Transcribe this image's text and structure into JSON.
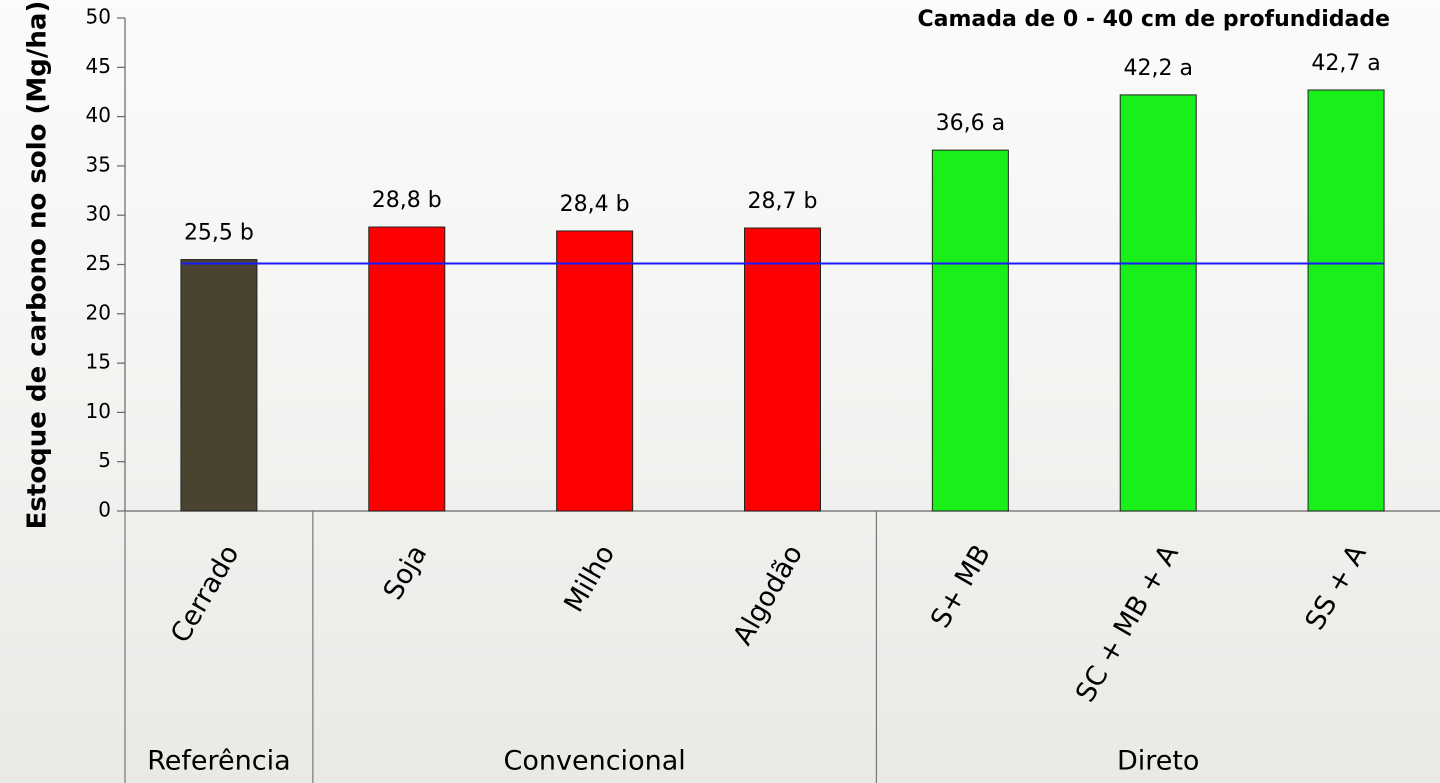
{
  "chart_data": {
    "type": "bar",
    "title": "Camada de 0 - 40 cm de profundidade",
    "y_label": "Estoque de carbono no solo (Mg/ha)",
    "ylim": [
      0,
      50
    ],
    "yticks": [
      0,
      5,
      10,
      15,
      20,
      25,
      30,
      35,
      40,
      45,
      50
    ],
    "reference_line": {
      "value": 25.1,
      "color": "#1a1aff"
    },
    "groups": [
      {
        "name": "Referência",
        "color": "#4a4330",
        "categories": [
          "Cerrado"
        ],
        "values": [
          25.5
        ],
        "value_labels": [
          "25,5 b"
        ]
      },
      {
        "name": "Convencional",
        "color": "#ff0000",
        "categories": [
          "Soja",
          "Milho",
          "Algodão"
        ],
        "values": [
          28.8,
          28.4,
          28.7
        ],
        "value_labels": [
          "28,8 b",
          "28,4 b",
          "28,7 b"
        ]
      },
      {
        "name": "Direto",
        "color": "#19f019",
        "categories": [
          "S+ MB",
          "SC + MB + A",
          "SS + A"
        ],
        "values": [
          36.6,
          42.2,
          42.7
        ],
        "value_labels": [
          "36,6 a",
          "42,2 a",
          "42,7 a"
        ]
      }
    ]
  }
}
